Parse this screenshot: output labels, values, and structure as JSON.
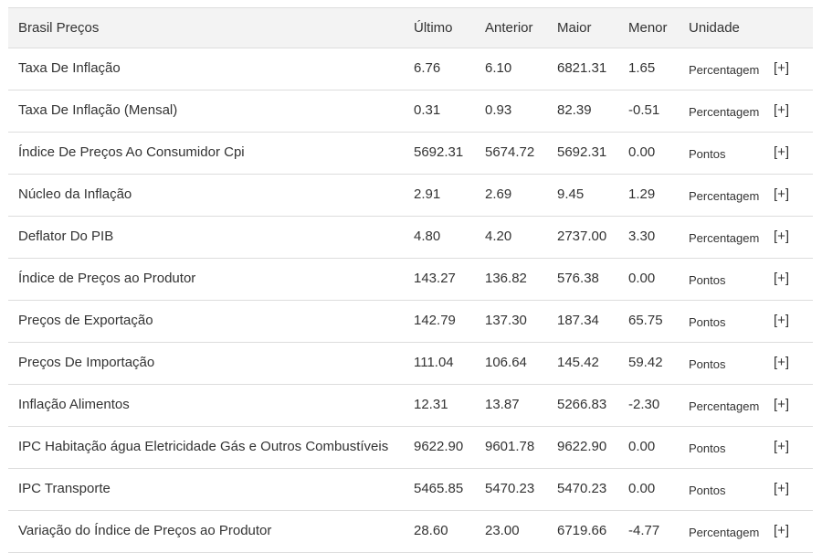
{
  "table": {
    "headers": [
      "Brasil Preços",
      "Último",
      "Anterior",
      "Maior",
      "Menor",
      "Unidade"
    ],
    "more_label": "[+]",
    "rows": [
      {
        "name": "Taxa De Inflação",
        "last": "6.76",
        "previous": "6.10",
        "highest": "6821.31",
        "lowest": "1.65",
        "unit": "Percentagem"
      },
      {
        "name": "Taxa De Inflação (Mensal)",
        "last": "0.31",
        "previous": "0.93",
        "highest": "82.39",
        "lowest": "-0.51",
        "unit": "Percentagem"
      },
      {
        "name": "Índice De Preços Ao Consumidor Cpi",
        "last": "5692.31",
        "previous": "5674.72",
        "highest": "5692.31",
        "lowest": "0.00",
        "unit": "Pontos"
      },
      {
        "name": "Núcleo da Inflação",
        "last": "2.91",
        "previous": "2.69",
        "highest": "9.45",
        "lowest": "1.29",
        "unit": "Percentagem"
      },
      {
        "name": "Deflator Do PIB",
        "last": "4.80",
        "previous": "4.20",
        "highest": "2737.00",
        "lowest": "3.30",
        "unit": "Percentagem"
      },
      {
        "name": "Índice de Preços ao Produtor",
        "last": "143.27",
        "previous": "136.82",
        "highest": "576.38",
        "lowest": "0.00",
        "unit": "Pontos"
      },
      {
        "name": "Preços de Exportação",
        "last": "142.79",
        "previous": "137.30",
        "highest": "187.34",
        "lowest": "65.75",
        "unit": "Pontos"
      },
      {
        "name": "Preços De Importação",
        "last": "111.04",
        "previous": "106.64",
        "highest": "145.42",
        "lowest": "59.42",
        "unit": "Pontos"
      },
      {
        "name": "Inflação Alimentos",
        "last": "12.31",
        "previous": "13.87",
        "highest": "5266.83",
        "lowest": "-2.30",
        "unit": "Percentagem"
      },
      {
        "name": "IPC Habitação água Eletricidade Gás e Outros Combustíveis",
        "last": "9622.90",
        "previous": "9601.78",
        "highest": "9622.90",
        "lowest": "0.00",
        "unit": "Pontos"
      },
      {
        "name": "IPC Transporte",
        "last": "5465.85",
        "previous": "5470.23",
        "highest": "5470.23",
        "lowest": "0.00",
        "unit": "Pontos"
      },
      {
        "name": "Variação do Índice de Preços ao Produtor",
        "last": "28.60",
        "previous": "23.00",
        "highest": "6719.66",
        "lowest": "-4.77",
        "unit": "Percentagem"
      }
    ]
  }
}
